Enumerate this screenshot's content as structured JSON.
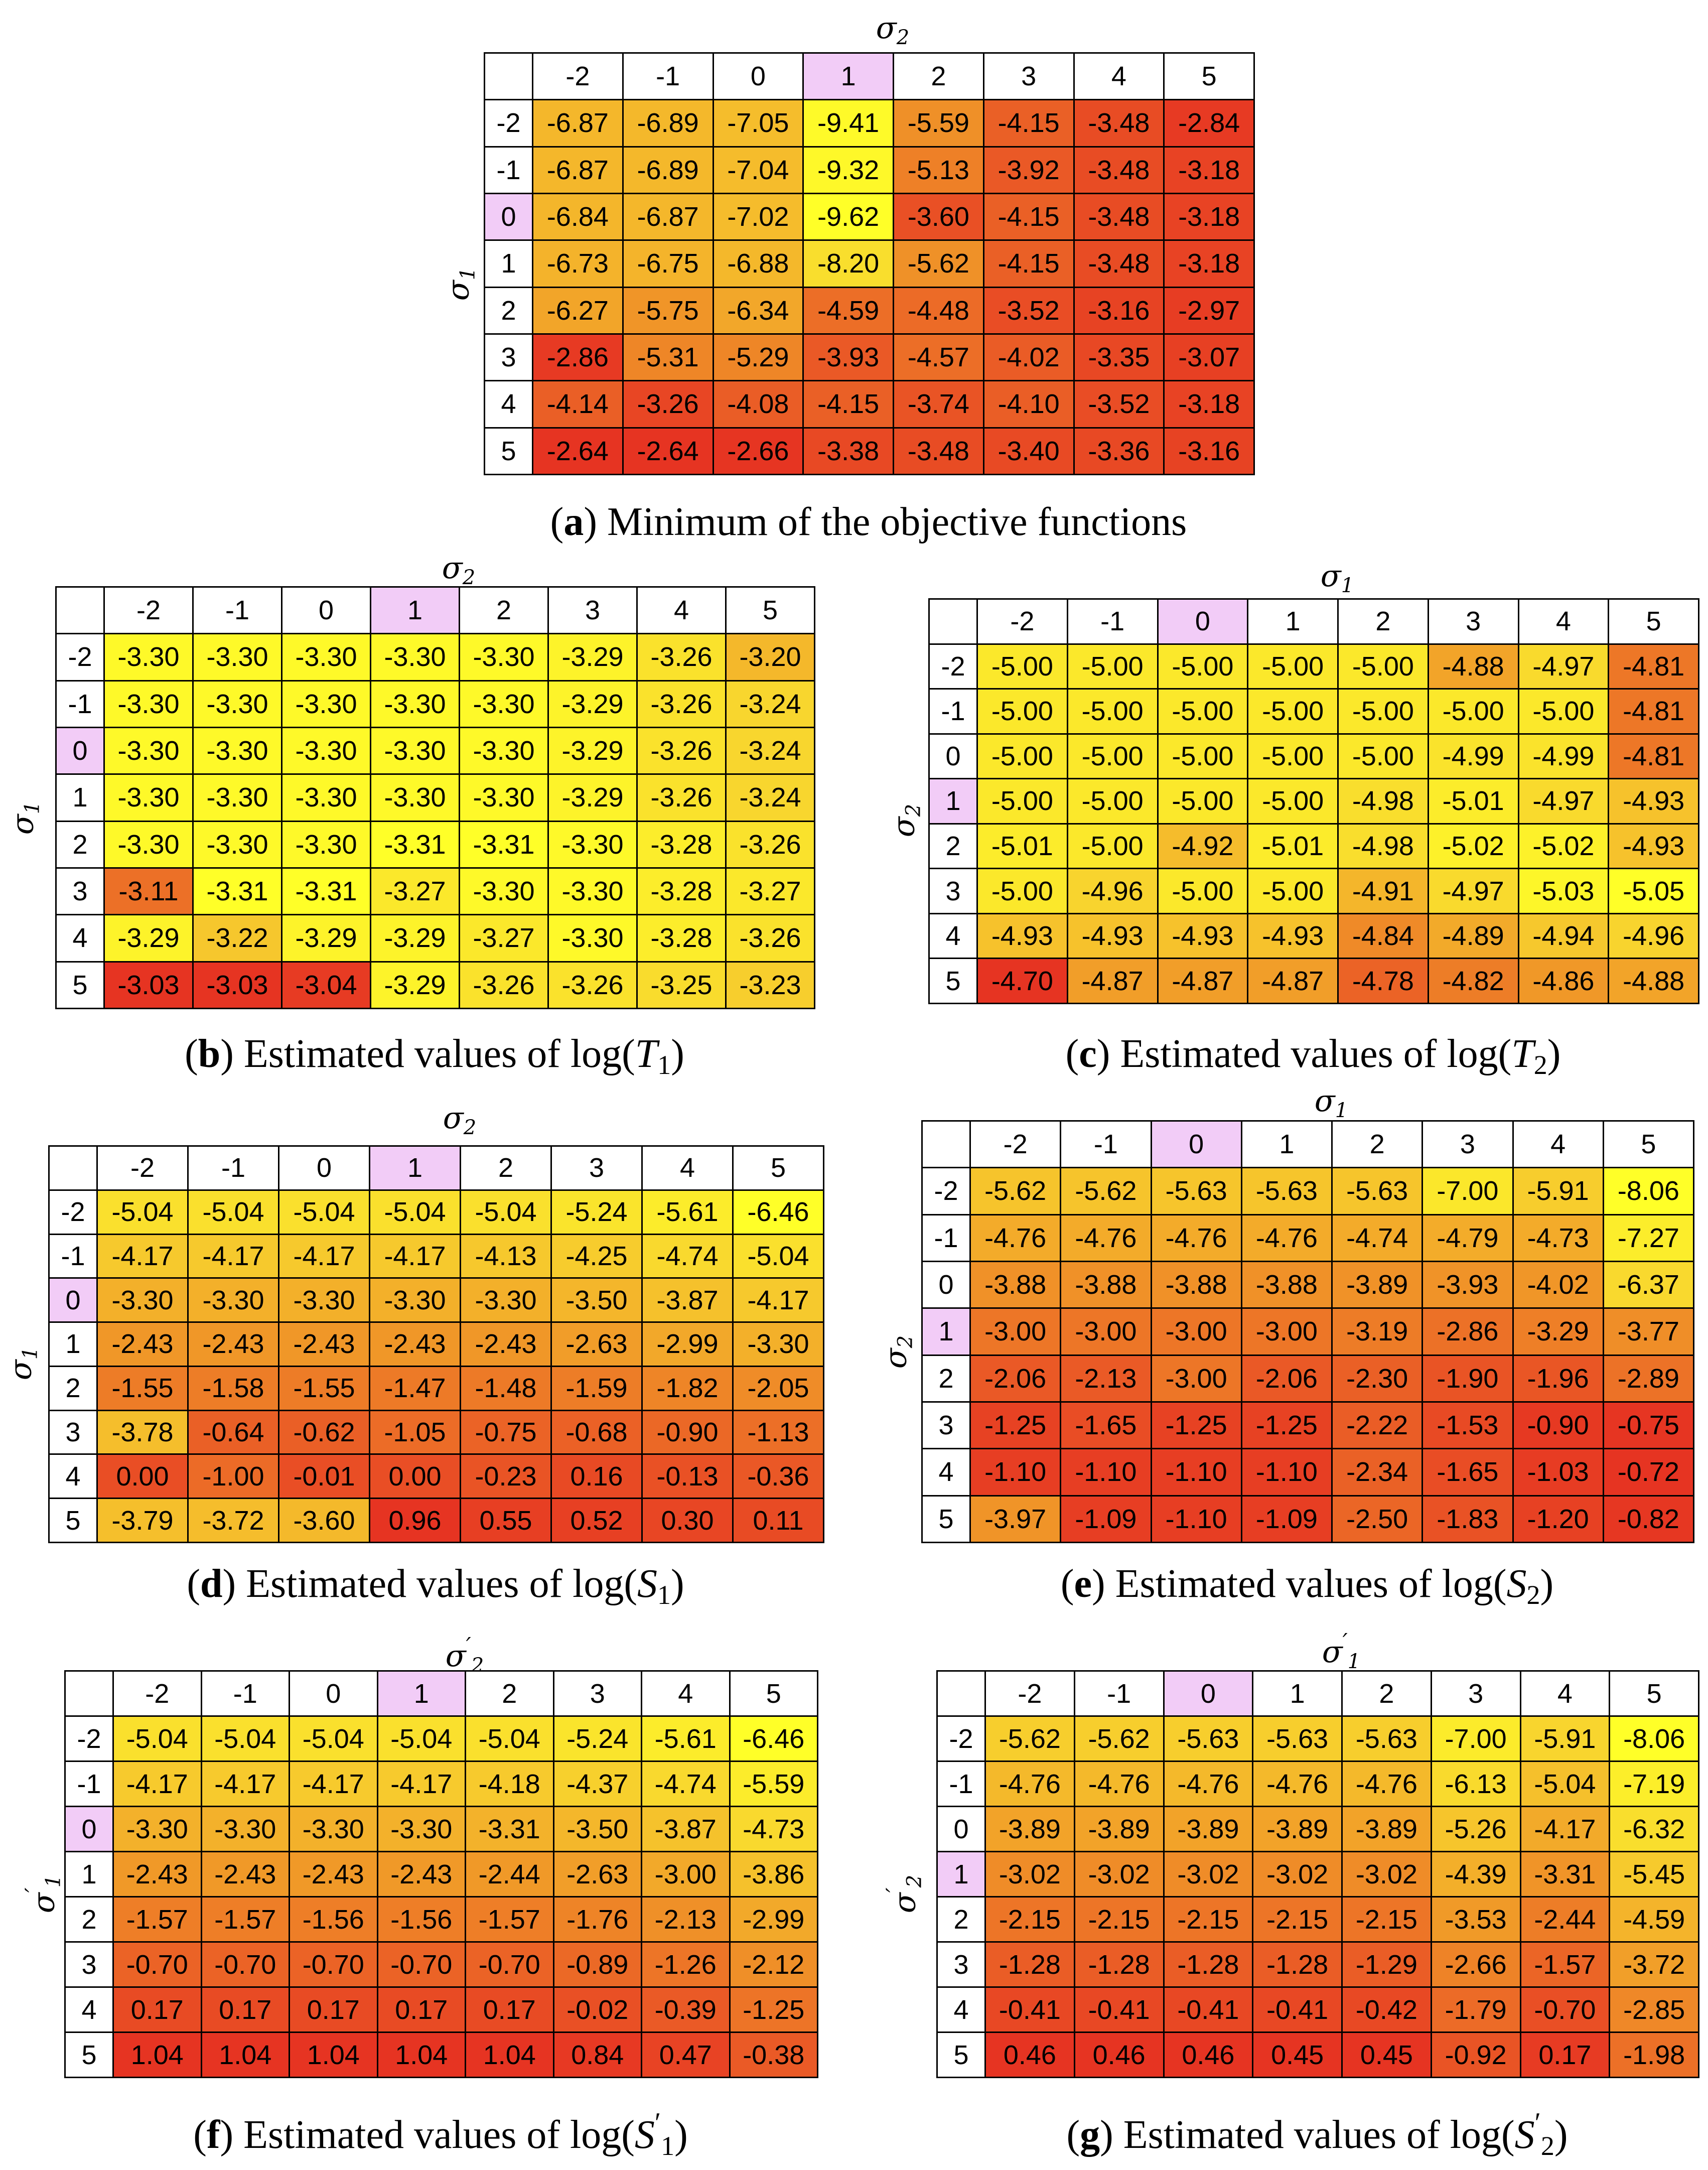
{
  "colors": {
    "highlight": "#f2ccf7",
    "white": "#ffffff"
  },
  "panels": [
    {
      "id": "a",
      "caption_letter": "a",
      "caption_text": "Minimum of the objective functions",
      "top_axis": {
        "symbol": "σ",
        "sub": "2",
        "prime": false
      },
      "left_axis": {
        "symbol": "σ",
        "sub": "1",
        "prime": false
      },
      "col_headers": [
        "-2",
        "-1",
        "0",
        "1",
        "2",
        "3",
        "4",
        "5"
      ],
      "row_headers": [
        "-2",
        "-1",
        "0",
        "1",
        "2",
        "3",
        "4",
        "5"
      ],
      "highlight_col": 3,
      "highlight_row": 2,
      "values": [
        [
          "-6.87",
          "-6.89",
          "-7.05",
          "-9.41",
          "-5.59",
          "-4.15",
          "-3.48",
          "-2.84"
        ],
        [
          "-6.87",
          "-6.89",
          "-7.04",
          "-9.32",
          "-5.13",
          "-3.92",
          "-3.48",
          "-3.18"
        ],
        [
          "-6.84",
          "-6.87",
          "-7.02",
          "-9.62",
          "-3.60",
          "-4.15",
          "-3.48",
          "-3.18"
        ],
        [
          "-6.73",
          "-6.75",
          "-6.88",
          "-8.20",
          "-5.62",
          "-4.15",
          "-3.48",
          "-3.18"
        ],
        [
          "-6.27",
          "-5.75",
          "-6.34",
          "-4.59",
          "-4.48",
          "-3.52",
          "-3.16",
          "-2.97"
        ],
        [
          "-2.86",
          "-5.31",
          "-5.29",
          "-3.93",
          "-4.57",
          "-4.02",
          "-3.35",
          "-3.07"
        ],
        [
          "-4.14",
          "-3.26",
          "-4.08",
          "-4.15",
          "-3.74",
          "-4.10",
          "-3.52",
          "-3.18"
        ],
        [
          "-2.64",
          "-2.64",
          "-2.66",
          "-3.38",
          "-3.48",
          "-3.40",
          "-3.36",
          "-3.16"
        ]
      ]
    },
    {
      "id": "b",
      "caption_letter": "b",
      "caption_text": "Estimated values of log(",
      "caption_var": "T",
      "caption_sub": "1",
      "caption_prime": false,
      "caption_end": ")",
      "top_axis": {
        "symbol": "σ",
        "sub": "2",
        "prime": false
      },
      "left_axis": {
        "symbol": "σ",
        "sub": "1",
        "prime": false
      },
      "col_headers": [
        "-2",
        "-1",
        "0",
        "1",
        "2",
        "3",
        "4",
        "5"
      ],
      "row_headers": [
        "-2",
        "-1",
        "0",
        "1",
        "2",
        "3",
        "4",
        "5"
      ],
      "highlight_col": 3,
      "highlight_row": 2,
      "values": [
        [
          "-3.30",
          "-3.30",
          "-3.30",
          "-3.30",
          "-3.30",
          "-3.29",
          "-3.26",
          "-3.20"
        ],
        [
          "-3.30",
          "-3.30",
          "-3.30",
          "-3.30",
          "-3.30",
          "-3.29",
          "-3.26",
          "-3.24"
        ],
        [
          "-3.30",
          "-3.30",
          "-3.30",
          "-3.30",
          "-3.30",
          "-3.29",
          "-3.26",
          "-3.24"
        ],
        [
          "-3.30",
          "-3.30",
          "-3.30",
          "-3.30",
          "-3.30",
          "-3.29",
          "-3.26",
          "-3.24"
        ],
        [
          "-3.30",
          "-3.30",
          "-3.30",
          "-3.31",
          "-3.31",
          "-3.30",
          "-3.28",
          "-3.26"
        ],
        [
          "-3.11",
          "-3.31",
          "-3.31",
          "-3.27",
          "-3.30",
          "-3.30",
          "-3.28",
          "-3.27"
        ],
        [
          "-3.29",
          "-3.22",
          "-3.29",
          "-3.29",
          "-3.27",
          "-3.30",
          "-3.28",
          "-3.26"
        ],
        [
          "-3.03",
          "-3.03",
          "-3.04",
          "-3.29",
          "-3.26",
          "-3.26",
          "-3.25",
          "-3.23"
        ]
      ]
    },
    {
      "id": "c",
      "caption_letter": "c",
      "caption_text": "Estimated values of log(",
      "caption_var": "T",
      "caption_sub": "2",
      "caption_prime": false,
      "caption_end": ")",
      "top_axis": {
        "symbol": "σ",
        "sub": "1",
        "prime": false
      },
      "left_axis": {
        "symbol": "σ",
        "sub": "2",
        "prime": false
      },
      "col_headers": [
        "-2",
        "-1",
        "0",
        "1",
        "2",
        "3",
        "4",
        "5"
      ],
      "row_headers": [
        "-2",
        "-1",
        "0",
        "1",
        "2",
        "3",
        "4",
        "5"
      ],
      "highlight_col": 2,
      "highlight_row": 3,
      "values": [
        [
          "-5.00",
          "-5.00",
          "-5.00",
          "-5.00",
          "-5.00",
          "-4.88",
          "-4.97",
          "-4.81"
        ],
        [
          "-5.00",
          "-5.00",
          "-5.00",
          "-5.00",
          "-5.00",
          "-5.00",
          "-5.00",
          "-4.81"
        ],
        [
          "-5.00",
          "-5.00",
          "-5.00",
          "-5.00",
          "-5.00",
          "-4.99",
          "-4.99",
          "-4.81"
        ],
        [
          "-5.00",
          "-5.00",
          "-5.00",
          "-5.00",
          "-4.98",
          "-5.01",
          "-4.97",
          "-4.93"
        ],
        [
          "-5.01",
          "-5.00",
          "-4.92",
          "-5.01",
          "-4.98",
          "-5.02",
          "-5.02",
          "-4.93"
        ],
        [
          "-5.00",
          "-4.96",
          "-5.00",
          "-5.00",
          "-4.91",
          "-4.97",
          "-5.03",
          "-5.05"
        ],
        [
          "-4.93",
          "-4.93",
          "-4.93",
          "-4.93",
          "-4.84",
          "-4.89",
          "-4.94",
          "-4.96"
        ],
        [
          "-4.70",
          "-4.87",
          "-4.87",
          "-4.87",
          "-4.78",
          "-4.82",
          "-4.86",
          "-4.88"
        ]
      ]
    },
    {
      "id": "d",
      "caption_letter": "d",
      "caption_text": "Estimated values of log(",
      "caption_var": "S",
      "caption_sub": "1",
      "caption_prime": false,
      "caption_end": ")",
      "top_axis": {
        "symbol": "σ",
        "sub": "2",
        "prime": false
      },
      "left_axis": {
        "symbol": "σ",
        "sub": "1",
        "prime": false
      },
      "col_headers": [
        "-2",
        "-1",
        "0",
        "1",
        "2",
        "3",
        "4",
        "5"
      ],
      "row_headers": [
        "-2",
        "-1",
        "0",
        "1",
        "2",
        "3",
        "4",
        "5"
      ],
      "highlight_col": 3,
      "highlight_row": 2,
      "values": [
        [
          "-5.04",
          "-5.04",
          "-5.04",
          "-5.04",
          "-5.04",
          "-5.24",
          "-5.61",
          "-6.46"
        ],
        [
          "-4.17",
          "-4.17",
          "-4.17",
          "-4.17",
          "-4.13",
          "-4.25",
          "-4.74",
          "-5.04"
        ],
        [
          "-3.30",
          "-3.30",
          "-3.30",
          "-3.30",
          "-3.30",
          "-3.50",
          "-3.87",
          "-4.17"
        ],
        [
          "-2.43",
          "-2.43",
          "-2.43",
          "-2.43",
          "-2.43",
          "-2.63",
          "-2.99",
          "-3.30"
        ],
        [
          "-1.55",
          "-1.58",
          "-1.55",
          "-1.47",
          "-1.48",
          "-1.59",
          "-1.82",
          "-2.05"
        ],
        [
          "-3.78",
          "-0.64",
          "-0.62",
          "-1.05",
          "-0.75",
          "-0.68",
          "-0.90",
          "-1.13"
        ],
        [
          "0.00",
          "-1.00",
          "-0.01",
          "0.00",
          "-0.23",
          "0.16",
          "-0.13",
          "-0.36"
        ],
        [
          "-3.79",
          "-3.72",
          "-3.60",
          "0.96",
          "0.55",
          "0.52",
          "0.30",
          "0.11"
        ]
      ]
    },
    {
      "id": "e",
      "caption_letter": "e",
      "caption_text": "Estimated values of log(",
      "caption_var": "S",
      "caption_sub": "2",
      "caption_prime": false,
      "caption_end": ")",
      "top_axis": {
        "symbol": "σ",
        "sub": "1",
        "prime": false
      },
      "left_axis": {
        "symbol": "σ",
        "sub": "2",
        "prime": false
      },
      "col_headers": [
        "-2",
        "-1",
        "0",
        "1",
        "2",
        "3",
        "4",
        "5"
      ],
      "row_headers": [
        "-2",
        "-1",
        "0",
        "1",
        "2",
        "3",
        "4",
        "5"
      ],
      "highlight_col": 2,
      "highlight_row": 3,
      "values": [
        [
          "-5.62",
          "-5.62",
          "-5.63",
          "-5.63",
          "-5.63",
          "-7.00",
          "-5.91",
          "-8.06"
        ],
        [
          "-4.76",
          "-4.76",
          "-4.76",
          "-4.76",
          "-4.74",
          "-4.79",
          "-4.73",
          "-7.27"
        ],
        [
          "-3.88",
          "-3.88",
          "-3.88",
          "-3.88",
          "-3.89",
          "-3.93",
          "-4.02",
          "-6.37"
        ],
        [
          "-3.00",
          "-3.00",
          "-3.00",
          "-3.00",
          "-3.19",
          "-2.86",
          "-3.29",
          "-3.77"
        ],
        [
          "-2.06",
          "-2.13",
          "-3.00",
          "-2.06",
          "-2.30",
          "-1.90",
          "-1.96",
          "-2.89"
        ],
        [
          "-1.25",
          "-1.65",
          "-1.25",
          "-1.25",
          "-2.22",
          "-1.53",
          "-0.90",
          "-0.75"
        ],
        [
          "-1.10",
          "-1.10",
          "-1.10",
          "-1.10",
          "-2.34",
          "-1.65",
          "-1.03",
          "-0.72"
        ],
        [
          "-3.97",
          "-1.09",
          "-1.10",
          "-1.09",
          "-2.50",
          "-1.83",
          "-1.20",
          "-0.82"
        ]
      ]
    },
    {
      "id": "f",
      "caption_letter": "f",
      "caption_text": "Estimated values of log(",
      "caption_var": "S",
      "caption_sub": "1",
      "caption_prime": true,
      "caption_end": ")",
      "top_axis": {
        "symbol": "σ",
        "sub": "2",
        "prime": true
      },
      "left_axis": {
        "symbol": "σ",
        "sub": "1",
        "prime": true
      },
      "col_headers": [
        "-2",
        "-1",
        "0",
        "1",
        "2",
        "3",
        "4",
        "5"
      ],
      "row_headers": [
        "-2",
        "-1",
        "0",
        "1",
        "2",
        "3",
        "4",
        "5"
      ],
      "highlight_col": 3,
      "highlight_row": 2,
      "values": [
        [
          "-5.04",
          "-5.04",
          "-5.04",
          "-5.04",
          "-5.04",
          "-5.24",
          "-5.61",
          "-6.46"
        ],
        [
          "-4.17",
          "-4.17",
          "-4.17",
          "-4.17",
          "-4.18",
          "-4.37",
          "-4.74",
          "-5.59"
        ],
        [
          "-3.30",
          "-3.30",
          "-3.30",
          "-3.30",
          "-3.31",
          "-3.50",
          "-3.87",
          "-4.73"
        ],
        [
          "-2.43",
          "-2.43",
          "-2.43",
          "-2.43",
          "-2.44",
          "-2.63",
          "-3.00",
          "-3.86"
        ],
        [
          "-1.57",
          "-1.57",
          "-1.56",
          "-1.56",
          "-1.57",
          "-1.76",
          "-2.13",
          "-2.99"
        ],
        [
          "-0.70",
          "-0.70",
          "-0.70",
          "-0.70",
          "-0.70",
          "-0.89",
          "-1.26",
          "-2.12"
        ],
        [
          "0.17",
          "0.17",
          "0.17",
          "0.17",
          "0.17",
          "-0.02",
          "-0.39",
          "-1.25"
        ],
        [
          "1.04",
          "1.04",
          "1.04",
          "1.04",
          "1.04",
          "0.84",
          "0.47",
          "-0.38"
        ]
      ]
    },
    {
      "id": "g",
      "caption_letter": "g",
      "caption_text": "Estimated values of log(",
      "caption_var": "S",
      "caption_sub": "2",
      "caption_prime": true,
      "caption_end": ")",
      "top_axis": {
        "symbol": "σ",
        "sub": "1",
        "prime": true
      },
      "left_axis": {
        "symbol": "σ",
        "sub": "2",
        "prime": true
      },
      "col_headers": [
        "-2",
        "-1",
        "0",
        "1",
        "2",
        "3",
        "4",
        "5"
      ],
      "row_headers": [
        "-2",
        "-1",
        "0",
        "1",
        "2",
        "3",
        "4",
        "5"
      ],
      "highlight_col": 2,
      "highlight_row": 3,
      "values": [
        [
          "-5.62",
          "-5.62",
          "-5.63",
          "-5.63",
          "-5.63",
          "-7.00",
          "-5.91",
          "-8.06"
        ],
        [
          "-4.76",
          "-4.76",
          "-4.76",
          "-4.76",
          "-4.76",
          "-6.13",
          "-5.04",
          "-7.19"
        ],
        [
          "-3.89",
          "-3.89",
          "-3.89",
          "-3.89",
          "-3.89",
          "-5.26",
          "-4.17",
          "-6.32"
        ],
        [
          "-3.02",
          "-3.02",
          "-3.02",
          "-3.02",
          "-3.02",
          "-4.39",
          "-3.31",
          "-5.45"
        ],
        [
          "-2.15",
          "-2.15",
          "-2.15",
          "-2.15",
          "-2.15",
          "-3.53",
          "-2.44",
          "-4.59"
        ],
        [
          "-1.28",
          "-1.28",
          "-1.28",
          "-1.28",
          "-1.29",
          "-2.66",
          "-1.57",
          "-3.72"
        ],
        [
          "-0.41",
          "-0.41",
          "-0.41",
          "-0.41",
          "-0.42",
          "-1.79",
          "-0.70",
          "-2.85"
        ],
        [
          "0.46",
          "0.46",
          "0.46",
          "0.45",
          "0.45",
          "-0.92",
          "0.17",
          "-1.98"
        ]
      ]
    }
  ],
  "chart_data": [
    {
      "type": "heatmap",
      "title": "(a) Minimum of the objective functions",
      "xlabel": "σ2",
      "ylabel": "σ1",
      "color_scale": "low=yellow, high=red"
    },
    {
      "type": "heatmap",
      "title": "(b) Estimated values of log(T1)",
      "xlabel": "σ2",
      "ylabel": "σ1",
      "color_scale": "low=yellow, high=red"
    },
    {
      "type": "heatmap",
      "title": "(c) Estimated values of log(T2)",
      "xlabel": "σ1",
      "ylabel": "σ2",
      "color_scale": "low=yellow, high=red"
    },
    {
      "type": "heatmap",
      "title": "(d) Estimated values of log(S1)",
      "xlabel": "σ2",
      "ylabel": "σ1",
      "color_scale": "low=yellow, high=red"
    },
    {
      "type": "heatmap",
      "title": "(e) Estimated values of log(S2)",
      "xlabel": "σ1",
      "ylabel": "σ2",
      "color_scale": "low=yellow, high=red"
    },
    {
      "type": "heatmap",
      "title": "(f) Estimated values of log(S1')",
      "xlabel": "σ2'",
      "ylabel": "σ1'",
      "color_scale": "low=yellow, high=red"
    },
    {
      "type": "heatmap",
      "title": "(g) Estimated values of log(S2')",
      "xlabel": "σ1'",
      "ylabel": "σ2'",
      "color_scale": "low=yellow, high=red"
    }
  ]
}
